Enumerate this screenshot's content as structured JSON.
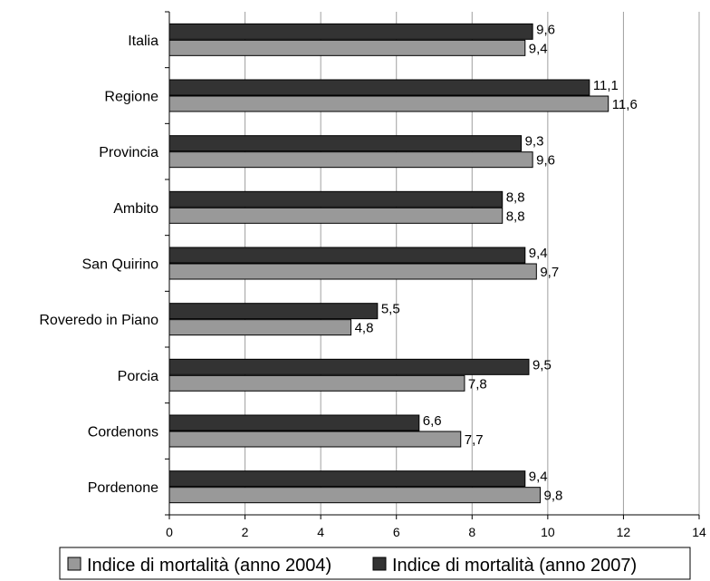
{
  "chart_data": {
    "type": "bar",
    "orientation": "horizontal",
    "categories": [
      "Italia",
      "Regione",
      "Provincia",
      "Ambito",
      "San Quirino",
      "Roveredo in Piano",
      "Porcia",
      "Cordenons",
      "Pordenone"
    ],
    "series": [
      {
        "name": "Indice di mortalità (anno 2007)",
        "color": "#333333",
        "values": [
          9.6,
          11.1,
          9.3,
          8.8,
          9.4,
          5.5,
          9.5,
          6.6,
          9.4
        ],
        "labels": [
          "9,6",
          "11,1",
          "9,3",
          "8,8",
          "9,4",
          "5,5",
          "9,5",
          "6,6",
          "9,4"
        ]
      },
      {
        "name": "Indice di mortalità (anno 2004)",
        "color": "#999999",
        "values": [
          9.4,
          11.6,
          9.6,
          8.8,
          9.7,
          4.8,
          7.8,
          7.7,
          9.8
        ],
        "labels": [
          "9,4",
          "11,6",
          "9,6",
          "8,8",
          "9,7",
          "4,8",
          "7,8",
          "7,7",
          "9,8"
        ]
      }
    ],
    "xlim": [
      0,
      14
    ],
    "xticks": [
      "0",
      "2",
      "4",
      "6",
      "8",
      "10",
      "12",
      "14"
    ],
    "grid": true,
    "legend": {
      "position": "bottom",
      "entries": [
        {
          "label": "Indice di mortalità (anno 2004)",
          "color": "#999999"
        },
        {
          "label": "Indice di mortalità  (anno 2007)",
          "color": "#333333"
        }
      ]
    }
  }
}
